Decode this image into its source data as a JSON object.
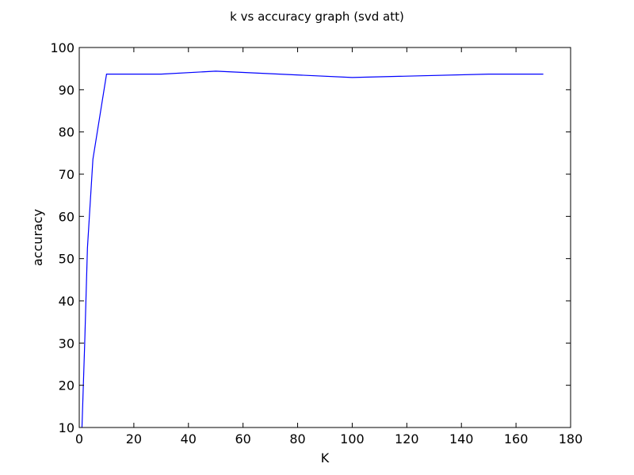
{
  "chart_data": {
    "type": "line",
    "title": "k vs accuracy graph (svd att)",
    "xlabel": "K",
    "ylabel": "accuracy",
    "xlim": [
      0,
      180
    ],
    "ylim": [
      10,
      100
    ],
    "x_ticks": [
      "0",
      "20",
      "40",
      "60",
      "80",
      "100",
      "120",
      "140",
      "160",
      "180"
    ],
    "y_ticks": [
      "10",
      "20",
      "30",
      "40",
      "50",
      "60",
      "70",
      "80",
      "90",
      "100"
    ],
    "grid": false,
    "series": [
      {
        "color": "#0000ff",
        "x": [
          1,
          2,
          3,
          5,
          10,
          30,
          50,
          100,
          150,
          170
        ],
        "y": [
          10,
          30,
          52.5,
          73.5,
          93.7,
          93.7,
          94.4,
          92.9,
          93.7,
          93.7
        ]
      }
    ]
  }
}
